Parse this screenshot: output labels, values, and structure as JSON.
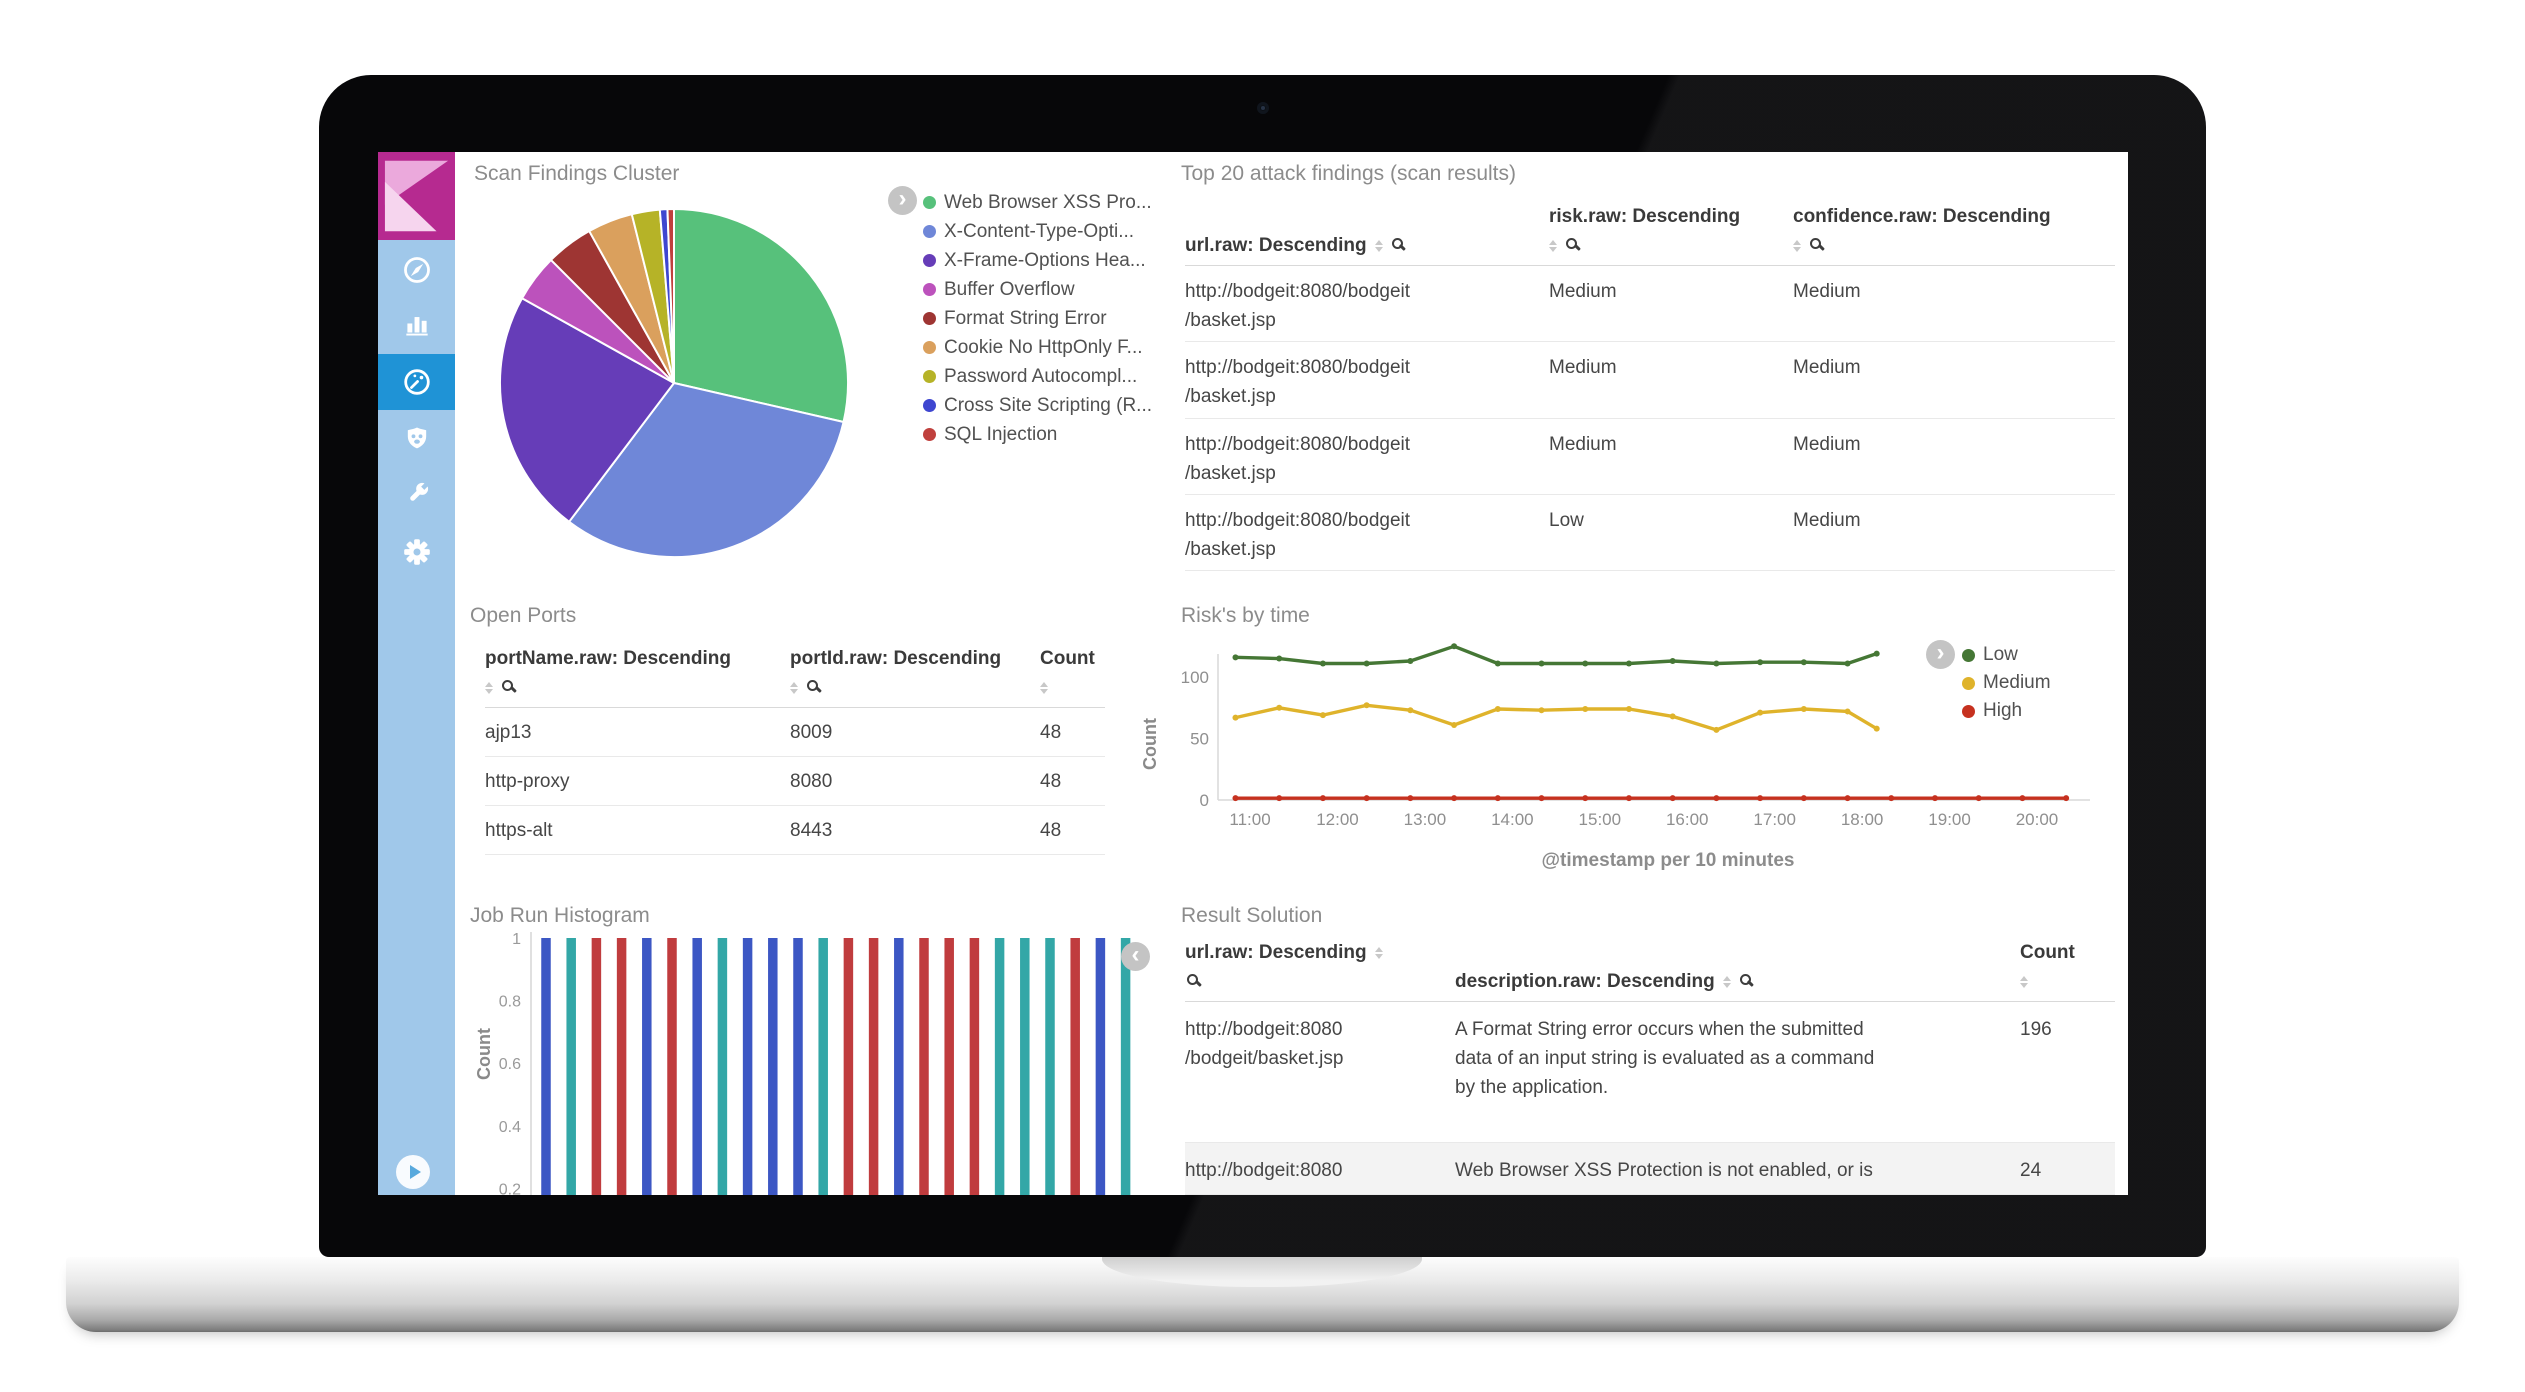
{
  "sidebar": {
    "items": [
      {
        "id": "discover",
        "icon": "compass-icon"
      },
      {
        "id": "visualize",
        "icon": "bar-chart-icon"
      },
      {
        "id": "dashboard",
        "icon": "dashboard-icon",
        "active": true
      },
      {
        "id": "security",
        "icon": "shield-icon"
      },
      {
        "id": "tools",
        "icon": "wrench-icon"
      },
      {
        "id": "settings",
        "icon": "gear-icon"
      }
    ],
    "collapse_icon": "play-circle-icon"
  },
  "panels": {
    "scan_findings": {
      "title": "Scan Findings Cluster",
      "legend": [
        {
          "label": "Web Browser XSS Pro...",
          "color": "#57c17b"
        },
        {
          "label": "X-Content-Type-Opti...",
          "color": "#6f87d8"
        },
        {
          "label": "X-Frame-Options Hea...",
          "color": "#663db8"
        },
        {
          "label": "Buffer Overflow",
          "color": "#bc52bc"
        },
        {
          "label": "Format String Error",
          "color": "#9e3533"
        },
        {
          "label": "Cookie No HttpOnly F...",
          "color": "#daa05d"
        },
        {
          "label": "Password Autocompl...",
          "color": "#b6b327"
        },
        {
          "label": "Cross Site Scripting (R...",
          "color": "#3e46d0"
        },
        {
          "label": "SQL Injection",
          "color": "#c0403d"
        }
      ]
    },
    "top20": {
      "title": "Top 20 attack findings (scan results)",
      "columns": [
        "url.raw: Descending",
        "risk.raw: Descending",
        "confidence.raw: Descending"
      ],
      "rows": [
        {
          "url": "http://bodgeit:8080/bodgeit\n/basket.jsp",
          "risk": "Medium",
          "confidence": "Medium"
        },
        {
          "url": "http://bodgeit:8080/bodgeit\n/basket.jsp",
          "risk": "Medium",
          "confidence": "Medium"
        },
        {
          "url": "http://bodgeit:8080/bodgeit\n/basket.jsp",
          "risk": "Medium",
          "confidence": "Medium"
        },
        {
          "url": "http://bodgeit:8080/bodgeit\n/basket.jsp",
          "risk": "Low",
          "confidence": "Medium"
        }
      ]
    },
    "open_ports": {
      "title": "Open Ports",
      "columns": [
        "portName.raw: Descending",
        "portId.raw: Descending",
        "Count"
      ],
      "rows": [
        {
          "name": "ajp13",
          "port": "8009",
          "count": "48"
        },
        {
          "name": "http-proxy",
          "port": "8080",
          "count": "48"
        },
        {
          "name": "https-alt",
          "port": "8443",
          "count": "48"
        }
      ]
    },
    "risks": {
      "title": "Risk's by time",
      "ylabel": "Count",
      "xlabel": "@timestamp per 10 minutes",
      "legend": [
        {
          "label": "Low",
          "color": "#457735"
        },
        {
          "label": "Medium",
          "color": "#dfb32b"
        },
        {
          "label": "High",
          "color": "#c6311f"
        }
      ]
    },
    "job_run": {
      "title": "Job Run Histogram",
      "ylabel": "Count"
    },
    "result": {
      "title": "Result Solution",
      "columns": [
        "url.raw: Descending",
        "description.raw: Descending",
        "Count"
      ],
      "rows": [
        {
          "url": "http://bodgeit:8080\n/bodgeit/basket.jsp",
          "description": "A Format String error occurs when the submitted\ndata of an input string is evaluated as a command\nby the application.",
          "count": "196"
        },
        {
          "url": "http://bodgeit:8080",
          "description": "Web Browser XSS Protection is not enabled, or is",
          "count": "24"
        }
      ]
    }
  },
  "chart_data": [
    {
      "id": "scan_findings_pie",
      "type": "pie",
      "title": "Scan Findings Cluster",
      "labels": [
        "Web Browser XSS Pro...",
        "X-Content-Type-Opti...",
        "X-Frame-Options Hea...",
        "Buffer Overflow",
        "Format String Error",
        "Cookie No HttpOnly F...",
        "Password Autocompl...",
        "Cross Site Scripting (R...",
        "SQL Injection"
      ],
      "values": [
        28.6,
        31.7,
        22.8,
        4.4,
        4.4,
        4.2,
        2.6,
        0.7,
        0.6
      ],
      "colors": [
        "#57c17b",
        "#6f87d8",
        "#663db8",
        "#bc52bc",
        "#9e3533",
        "#daa05d",
        "#b6b327",
        "#3e46d0",
        "#c0403d"
      ],
      "legend_position": "right"
    },
    {
      "id": "risks_by_time",
      "type": "line",
      "title": "Risk's by time",
      "xlabel": "@timestamp per 10 minutes",
      "ylabel": "Count",
      "ylim": [
        0,
        130
      ],
      "yticks": [
        0,
        50,
        100
      ],
      "xtick_minutes": [
        660,
        720,
        780,
        840,
        900,
        960,
        1020,
        1080,
        1140,
        1200
      ],
      "xtick_labels": [
        "11:00",
        "12:00",
        "13:00",
        "14:00",
        "15:00",
        "16:00",
        "17:00",
        "18:00",
        "19:00",
        "20:00"
      ],
      "xlim_minutes": [
        638,
        1235
      ],
      "legend_position": "right",
      "series": [
        {
          "name": "Low",
          "color": "#457735",
          "x": [
            650,
            680,
            710,
            740,
            770,
            800,
            830,
            860,
            890,
            920,
            950,
            980,
            1010,
            1040,
            1070,
            1090
          ],
          "y": [
            116,
            115,
            111,
            111,
            113,
            125,
            111,
            111,
            111,
            111,
            113,
            111,
            112,
            112,
            111,
            119
          ]
        },
        {
          "name": "Medium",
          "color": "#dfb32b",
          "x": [
            650,
            680,
            710,
            740,
            770,
            800,
            830,
            860,
            890,
            920,
            950,
            980,
            1010,
            1040,
            1070,
            1090
          ],
          "y": [
            67,
            75,
            69,
            77,
            73,
            61,
            74,
            73,
            74,
            74,
            68,
            57,
            71,
            74,
            72,
            58
          ]
        },
        {
          "name": "High",
          "color": "#c6311f",
          "x": [
            650,
            680,
            710,
            740,
            770,
            800,
            830,
            860,
            890,
            920,
            950,
            980,
            1010,
            1040,
            1070,
            1100,
            1130,
            1160,
            1190,
            1220
          ],
          "y": [
            1.5,
            1.5,
            1.5,
            1.5,
            1.5,
            1.5,
            1.5,
            1.5,
            1.5,
            1.5,
            1.5,
            1.5,
            1.5,
            1.5,
            1.5,
            1.5,
            1.5,
            1.5,
            1.5,
            1.5
          ]
        }
      ]
    },
    {
      "id": "job_run_histogram",
      "type": "bar",
      "title": "Job Run Histogram",
      "ylabel": "Count",
      "ylim": [
        0,
        1
      ],
      "yticks": [
        1,
        0.8,
        0.6,
        0.4,
        0.2
      ],
      "values": [
        1,
        1,
        1,
        1,
        1,
        1,
        1,
        1,
        1,
        1,
        1,
        1,
        1,
        1,
        1,
        1,
        1,
        1,
        1,
        1,
        1,
        1,
        1,
        1
      ],
      "colors": [
        "#3c57c4",
        "#33a7a7",
        "#c03c3e",
        "#c03c3e",
        "#3c57c4",
        "#c03c3e",
        "#3c57c4",
        "#33a7a7",
        "#3c57c4",
        "#3c57c4",
        "#3c57c4",
        "#33a7a7",
        "#c03c3e",
        "#c03c3e",
        "#3c57c4",
        "#c03c3e",
        "#c03c3e",
        "#c03c3e",
        "#33a7a7",
        "#33a7a7",
        "#33a7a7",
        "#c03c3e",
        "#3c57c4",
        "#33a7a7"
      ]
    }
  ]
}
